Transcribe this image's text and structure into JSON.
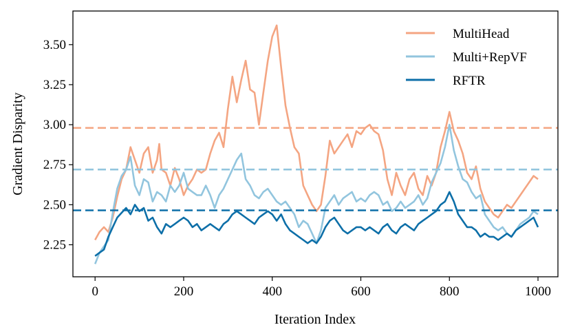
{
  "chart_data": {
    "type": "line",
    "title": "",
    "xlabel": "Iteration Index",
    "ylabel": "Gradient Disparity",
    "xlim": [
      -50,
      1045
    ],
    "ylim": [
      2.05,
      3.71
    ],
    "xticks": [
      0,
      200,
      400,
      600,
      800,
      1000
    ],
    "xtick_labels": [
      "0",
      "200",
      "400",
      "600",
      "800",
      "1000"
    ],
    "yticks": [
      2.25,
      2.5,
      2.75,
      3.0,
      3.25,
      3.5
    ],
    "ytick_labels": [
      "2.25",
      "2.50",
      "2.75",
      "3.00",
      "3.25",
      "3.50"
    ],
    "grid": false,
    "legend_position": "top-right",
    "series": [
      {
        "name": "MultiHead",
        "color": "#f4a582",
        "mean": 2.98,
        "points": [
          [
            0,
            2.28
          ],
          [
            10,
            2.33
          ],
          [
            20,
            2.36
          ],
          [
            30,
            2.33
          ],
          [
            40,
            2.42
          ],
          [
            50,
            2.55
          ],
          [
            60,
            2.66
          ],
          [
            70,
            2.72
          ],
          [
            80,
            2.86
          ],
          [
            90,
            2.78
          ],
          [
            100,
            2.7
          ],
          [
            110,
            2.82
          ],
          [
            120,
            2.86
          ],
          [
            130,
            2.7
          ],
          [
            140,
            2.78
          ],
          [
            145,
            2.88
          ],
          [
            150,
            2.72
          ],
          [
            160,
            2.7
          ],
          [
            170,
            2.62
          ],
          [
            180,
            2.73
          ],
          [
            190,
            2.66
          ],
          [
            200,
            2.56
          ],
          [
            210,
            2.62
          ],
          [
            220,
            2.66
          ],
          [
            230,
            2.72
          ],
          [
            240,
            2.7
          ],
          [
            250,
            2.72
          ],
          [
            260,
            2.82
          ],
          [
            270,
            2.9
          ],
          [
            280,
            2.95
          ],
          [
            290,
            2.86
          ],
          [
            300,
            3.1
          ],
          [
            310,
            3.3
          ],
          [
            320,
            3.14
          ],
          [
            330,
            3.28
          ],
          [
            340,
            3.4
          ],
          [
            350,
            3.22
          ],
          [
            360,
            3.2
          ],
          [
            370,
            3.0
          ],
          [
            380,
            3.2
          ],
          [
            390,
            3.4
          ],
          [
            400,
            3.55
          ],
          [
            410,
            3.62
          ],
          [
            420,
            3.36
          ],
          [
            430,
            3.12
          ],
          [
            440,
            2.98
          ],
          [
            450,
            2.86
          ],
          [
            460,
            2.82
          ],
          [
            470,
            2.62
          ],
          [
            480,
            2.56
          ],
          [
            490,
            2.5
          ],
          [
            500,
            2.46
          ],
          [
            510,
            2.5
          ],
          [
            520,
            2.68
          ],
          [
            530,
            2.9
          ],
          [
            540,
            2.82
          ],
          [
            550,
            2.86
          ],
          [
            560,
            2.9
          ],
          [
            570,
            2.94
          ],
          [
            580,
            2.86
          ],
          [
            590,
            2.96
          ],
          [
            600,
            2.94
          ],
          [
            610,
            2.98
          ],
          [
            620,
            3.0
          ],
          [
            630,
            2.96
          ],
          [
            640,
            2.94
          ],
          [
            650,
            2.84
          ],
          [
            660,
            2.66
          ],
          [
            670,
            2.56
          ],
          [
            680,
            2.7
          ],
          [
            690,
            2.62
          ],
          [
            700,
            2.56
          ],
          [
            710,
            2.66
          ],
          [
            720,
            2.7
          ],
          [
            730,
            2.6
          ],
          [
            740,
            2.56
          ],
          [
            750,
            2.68
          ],
          [
            760,
            2.62
          ],
          [
            770,
            2.7
          ],
          [
            780,
            2.86
          ],
          [
            790,
            2.96
          ],
          [
            800,
            3.08
          ],
          [
            810,
            2.96
          ],
          [
            820,
            2.9
          ],
          [
            830,
            2.82
          ],
          [
            840,
            2.7
          ],
          [
            850,
            2.66
          ],
          [
            860,
            2.74
          ],
          [
            870,
            2.6
          ],
          [
            880,
            2.52
          ],
          [
            890,
            2.48
          ],
          [
            900,
            2.44
          ],
          [
            910,
            2.42
          ],
          [
            920,
            2.46
          ],
          [
            930,
            2.5
          ],
          [
            940,
            2.48
          ],
          [
            950,
            2.52
          ],
          [
            960,
            2.56
          ],
          [
            970,
            2.6
          ],
          [
            980,
            2.64
          ],
          [
            990,
            2.68
          ],
          [
            1000,
            2.66
          ]
        ]
      },
      {
        "name": "Multi+RepVF",
        "color": "#92c5de",
        "mean": 2.72,
        "points": [
          [
            0,
            2.13
          ],
          [
            10,
            2.2
          ],
          [
            20,
            2.24
          ],
          [
            30,
            2.28
          ],
          [
            40,
            2.45
          ],
          [
            50,
            2.6
          ],
          [
            60,
            2.68
          ],
          [
            70,
            2.72
          ],
          [
            80,
            2.8
          ],
          [
            90,
            2.62
          ],
          [
            100,
            2.56
          ],
          [
            110,
            2.66
          ],
          [
            120,
            2.64
          ],
          [
            130,
            2.52
          ],
          [
            140,
            2.58
          ],
          [
            150,
            2.56
          ],
          [
            160,
            2.52
          ],
          [
            170,
            2.62
          ],
          [
            180,
            2.58
          ],
          [
            190,
            2.62
          ],
          [
            200,
            2.7
          ],
          [
            210,
            2.6
          ],
          [
            220,
            2.58
          ],
          [
            230,
            2.56
          ],
          [
            240,
            2.56
          ],
          [
            250,
            2.62
          ],
          [
            260,
            2.56
          ],
          [
            270,
            2.48
          ],
          [
            280,
            2.56
          ],
          [
            290,
            2.6
          ],
          [
            300,
            2.66
          ],
          [
            310,
            2.72
          ],
          [
            320,
            2.78
          ],
          [
            330,
            2.82
          ],
          [
            340,
            2.66
          ],
          [
            350,
            2.62
          ],
          [
            360,
            2.56
          ],
          [
            370,
            2.54
          ],
          [
            380,
            2.58
          ],
          [
            390,
            2.6
          ],
          [
            400,
            2.56
          ],
          [
            410,
            2.52
          ],
          [
            420,
            2.5
          ],
          [
            430,
            2.52
          ],
          [
            440,
            2.48
          ],
          [
            450,
            2.44
          ],
          [
            460,
            2.36
          ],
          [
            470,
            2.4
          ],
          [
            480,
            2.38
          ],
          [
            490,
            2.32
          ],
          [
            500,
            2.26
          ],
          [
            510,
            2.34
          ],
          [
            520,
            2.48
          ],
          [
            530,
            2.52
          ],
          [
            540,
            2.56
          ],
          [
            550,
            2.5
          ],
          [
            560,
            2.54
          ],
          [
            570,
            2.56
          ],
          [
            580,
            2.58
          ],
          [
            590,
            2.52
          ],
          [
            600,
            2.54
          ],
          [
            610,
            2.52
          ],
          [
            620,
            2.56
          ],
          [
            630,
            2.58
          ],
          [
            640,
            2.56
          ],
          [
            650,
            2.5
          ],
          [
            660,
            2.52
          ],
          [
            670,
            2.46
          ],
          [
            680,
            2.48
          ],
          [
            690,
            2.52
          ],
          [
            700,
            2.48
          ],
          [
            710,
            2.5
          ],
          [
            720,
            2.52
          ],
          [
            730,
            2.56
          ],
          [
            740,
            2.5
          ],
          [
            750,
            2.54
          ],
          [
            760,
            2.64
          ],
          [
            770,
            2.7
          ],
          [
            780,
            2.76
          ],
          [
            790,
            2.86
          ],
          [
            800,
            3.0
          ],
          [
            810,
            2.84
          ],
          [
            820,
            2.74
          ],
          [
            830,
            2.66
          ],
          [
            840,
            2.64
          ],
          [
            850,
            2.58
          ],
          [
            860,
            2.54
          ],
          [
            870,
            2.56
          ],
          [
            880,
            2.44
          ],
          [
            890,
            2.4
          ],
          [
            900,
            2.36
          ],
          [
            910,
            2.34
          ],
          [
            920,
            2.36
          ],
          [
            930,
            2.32
          ],
          [
            940,
            2.3
          ],
          [
            950,
            2.34
          ],
          [
            960,
            2.38
          ],
          [
            970,
            2.4
          ],
          [
            980,
            2.42
          ],
          [
            990,
            2.46
          ],
          [
            1000,
            2.44
          ]
        ]
      },
      {
        "name": "RFTR",
        "color": "#0d6fa8",
        "mean": 2.465,
        "points": [
          [
            0,
            2.18
          ],
          [
            10,
            2.2
          ],
          [
            20,
            2.22
          ],
          [
            30,
            2.3
          ],
          [
            40,
            2.36
          ],
          [
            50,
            2.42
          ],
          [
            60,
            2.45
          ],
          [
            70,
            2.48
          ],
          [
            80,
            2.44
          ],
          [
            90,
            2.5
          ],
          [
            100,
            2.46
          ],
          [
            110,
            2.48
          ],
          [
            120,
            2.4
          ],
          [
            130,
            2.42
          ],
          [
            140,
            2.36
          ],
          [
            150,
            2.32
          ],
          [
            160,
            2.38
          ],
          [
            170,
            2.36
          ],
          [
            180,
            2.38
          ],
          [
            190,
            2.4
          ],
          [
            200,
            2.42
          ],
          [
            210,
            2.4
          ],
          [
            220,
            2.36
          ],
          [
            230,
            2.38
          ],
          [
            240,
            2.34
          ],
          [
            250,
            2.36
          ],
          [
            260,
            2.38
          ],
          [
            270,
            2.36
          ],
          [
            280,
            2.34
          ],
          [
            290,
            2.38
          ],
          [
            300,
            2.4
          ],
          [
            310,
            2.44
          ],
          [
            320,
            2.46
          ],
          [
            330,
            2.44
          ],
          [
            340,
            2.42
          ],
          [
            350,
            2.4
          ],
          [
            360,
            2.38
          ],
          [
            370,
            2.42
          ],
          [
            380,
            2.44
          ],
          [
            390,
            2.46
          ],
          [
            400,
            2.44
          ],
          [
            410,
            2.4
          ],
          [
            420,
            2.44
          ],
          [
            430,
            2.38
          ],
          [
            440,
            2.34
          ],
          [
            450,
            2.32
          ],
          [
            460,
            2.3
          ],
          [
            470,
            2.28
          ],
          [
            480,
            2.26
          ],
          [
            490,
            2.28
          ],
          [
            500,
            2.26
          ],
          [
            510,
            2.3
          ],
          [
            520,
            2.36
          ],
          [
            530,
            2.4
          ],
          [
            540,
            2.42
          ],
          [
            550,
            2.38
          ],
          [
            560,
            2.34
          ],
          [
            570,
            2.32
          ],
          [
            580,
            2.34
          ],
          [
            590,
            2.36
          ],
          [
            600,
            2.36
          ],
          [
            610,
            2.34
          ],
          [
            620,
            2.36
          ],
          [
            630,
            2.34
          ],
          [
            640,
            2.32
          ],
          [
            650,
            2.36
          ],
          [
            660,
            2.38
          ],
          [
            670,
            2.34
          ],
          [
            680,
            2.32
          ],
          [
            690,
            2.36
          ],
          [
            700,
            2.38
          ],
          [
            710,
            2.36
          ],
          [
            720,
            2.34
          ],
          [
            730,
            2.38
          ],
          [
            740,
            2.4
          ],
          [
            750,
            2.42
          ],
          [
            760,
            2.44
          ],
          [
            770,
            2.46
          ],
          [
            780,
            2.5
          ],
          [
            790,
            2.52
          ],
          [
            800,
            2.58
          ],
          [
            810,
            2.52
          ],
          [
            820,
            2.44
          ],
          [
            830,
            2.4
          ],
          [
            840,
            2.36
          ],
          [
            850,
            2.36
          ],
          [
            860,
            2.34
          ],
          [
            870,
            2.3
          ],
          [
            880,
            2.32
          ],
          [
            890,
            2.3
          ],
          [
            900,
            2.3
          ],
          [
            910,
            2.28
          ],
          [
            920,
            2.3
          ],
          [
            930,
            2.32
          ],
          [
            940,
            2.3
          ],
          [
            950,
            2.34
          ],
          [
            960,
            2.36
          ],
          [
            970,
            2.38
          ],
          [
            980,
            2.4
          ],
          [
            990,
            2.42
          ],
          [
            1000,
            2.36
          ]
        ]
      }
    ]
  }
}
